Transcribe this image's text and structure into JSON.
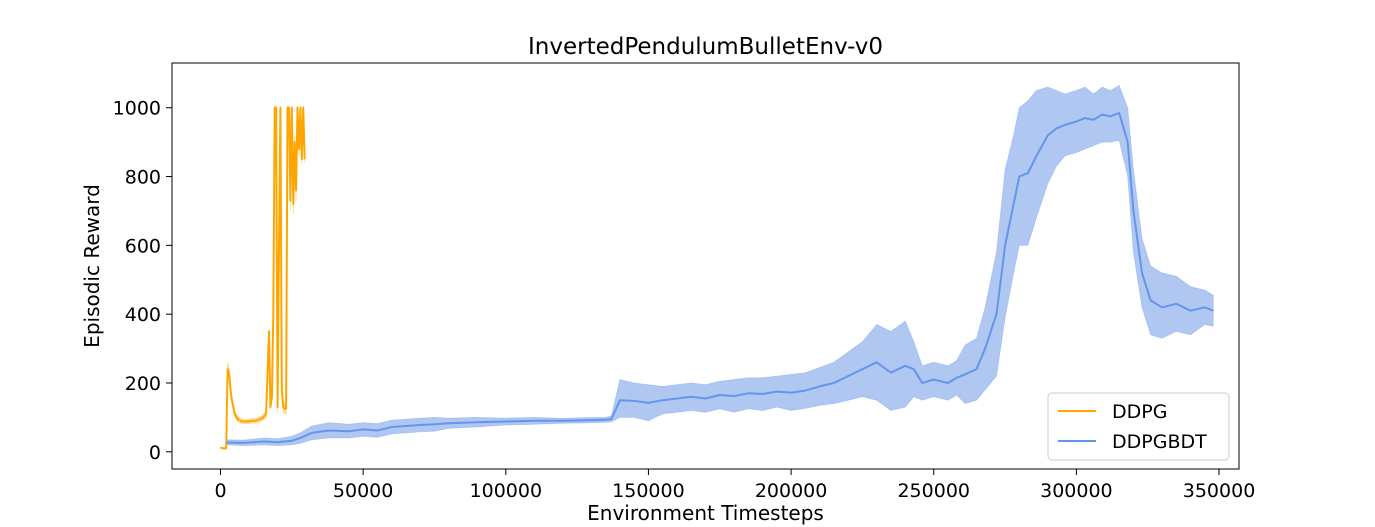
{
  "chart_data": {
    "type": "line",
    "title": "InvertedPendulumBulletEnv-v0",
    "xlabel": "Environment Timesteps",
    "ylabel": "Episodic Reward",
    "xlim": [
      -17000,
      357000
    ],
    "ylim": [
      -50,
      1130
    ],
    "xticks": [
      0,
      50000,
      100000,
      150000,
      200000,
      250000,
      300000,
      350000
    ],
    "yticks": [
      0,
      200,
      400,
      600,
      800,
      1000
    ],
    "grid": false,
    "legend_position": "lower-right",
    "series": [
      {
        "name": "DDPG",
        "color": "#FFA500",
        "x": [
          0,
          1000,
          2000,
          2500,
          3000,
          3500,
          4000,
          5000,
          6000,
          7000,
          8000,
          9000,
          10000,
          11000,
          12000,
          13000,
          14000,
          15000,
          16000,
          17000,
          17500,
          18000,
          18500,
          19000,
          19500,
          20000,
          20500,
          21000,
          21500,
          22000,
          22500,
          23000,
          23500,
          24000,
          24500,
          25000,
          25500,
          26000,
          26500,
          27000,
          27500,
          28000,
          28500,
          29000,
          29500
        ],
        "y": [
          12,
          10,
          10,
          240,
          230,
          180,
          150,
          110,
          95,
          90,
          88,
          88,
          88,
          90,
          90,
          92,
          95,
          100,
          110,
          350,
          130,
          160,
          400,
          1000,
          1000,
          130,
          600,
          1000,
          180,
          130,
          125,
          125,
          1000,
          1000,
          730,
          1000,
          720,
          900,
          760,
          1000,
          880,
          1000,
          850,
          1000,
          850
        ],
        "upper": [
          14,
          12,
          12,
          260,
          240,
          195,
          160,
          118,
          103,
          97,
          94,
          94,
          95,
          96,
          97,
          99,
          103,
          108,
          120,
          360,
          140,
          175,
          410,
          1005,
          1005,
          150,
          620,
          1005,
          200,
          145,
          140,
          140,
          1005,
          1005,
          760,
          1005,
          750,
          920,
          790,
          1005,
          900,
          1005,
          870,
          1005,
          860
        ],
        "lower": [
          10,
          8,
          8,
          220,
          215,
          165,
          140,
          102,
          87,
          83,
          82,
          82,
          81,
          84,
          83,
          85,
          87,
          92,
          100,
          340,
          120,
          145,
          390,
          995,
          995,
          110,
          580,
          995,
          160,
          115,
          110,
          110,
          995,
          995,
          700,
          995,
          690,
          880,
          730,
          995,
          860,
          995,
          830,
          995,
          840
        ]
      },
      {
        "name": "DDPGBDT",
        "color": "#6495ED",
        "fill_color": "#A7C1F1",
        "x": [
          2000,
          8000,
          15000,
          20000,
          25000,
          28000,
          32000,
          38000,
          45000,
          50000,
          55000,
          60000,
          65000,
          70000,
          75000,
          80000,
          90000,
          100000,
          110000,
          120000,
          130000,
          135000,
          137000,
          140000,
          145000,
          150000,
          155000,
          160000,
          165000,
          170000,
          175000,
          180000,
          185000,
          190000,
          195000,
          200000,
          205000,
          210000,
          215000,
          220000,
          225000,
          230000,
          235000,
          240000,
          243000,
          246000,
          250000,
          255000,
          258000,
          261000,
          265000,
          268000,
          272000,
          275000,
          278000,
          280000,
          283000,
          286000,
          290000,
          293000,
          296000,
          300000,
          303000,
          306000,
          309000,
          312000,
          315000,
          318000,
          320000,
          323000,
          326000,
          330000,
          335000,
          340000,
          345000,
          348000
        ],
        "y": [
          27,
          26,
          30,
          28,
          32,
          40,
          55,
          62,
          60,
          65,
          62,
          72,
          75,
          78,
          80,
          83,
          86,
          88,
          90,
          90,
          92,
          93,
          95,
          150,
          148,
          142,
          150,
          155,
          160,
          155,
          165,
          162,
          170,
          168,
          175,
          172,
          178,
          190,
          200,
          220,
          240,
          260,
          230,
          250,
          240,
          200,
          210,
          200,
          215,
          225,
          240,
          300,
          400,
          600,
          720,
          800,
          810,
          860,
          920,
          940,
          950,
          960,
          970,
          965,
          980,
          975,
          985,
          900,
          700,
          520,
          440,
          420,
          430,
          410,
          420,
          410
        ],
        "upper": [
          35,
          34,
          40,
          38,
          45,
          55,
          75,
          85,
          80,
          85,
          82,
          92,
          95,
          98,
          100,
          98,
          100,
          98,
          100,
          97,
          100,
          100,
          105,
          210,
          200,
          195,
          190,
          195,
          200,
          195,
          205,
          210,
          215,
          215,
          220,
          225,
          230,
          245,
          260,
          290,
          320,
          370,
          350,
          380,
          320,
          250,
          260,
          250,
          265,
          310,
          330,
          420,
          580,
          820,
          920,
          1000,
          1020,
          1050,
          1060,
          1050,
          1040,
          1050,
          1060,
          1040,
          1060,
          1050,
          1065,
          1000,
          820,
          620,
          540,
          520,
          510,
          480,
          470,
          455
        ],
        "lower": [
          20,
          18,
          20,
          18,
          20,
          25,
          35,
          40,
          40,
          45,
          42,
          52,
          55,
          58,
          60,
          68,
          72,
          78,
          80,
          83,
          84,
          86,
          87,
          100,
          100,
          90,
          110,
          115,
          120,
          115,
          125,
          115,
          125,
          120,
          130,
          120,
          126,
          135,
          140,
          150,
          160,
          150,
          120,
          130,
          160,
          150,
          160,
          150,
          165,
          140,
          150,
          180,
          220,
          390,
          520,
          600,
          600,
          680,
          780,
          830,
          860,
          870,
          880,
          890,
          900,
          900,
          905,
          800,
          580,
          420,
          340,
          330,
          350,
          340,
          370,
          365
        ]
      }
    ]
  }
}
